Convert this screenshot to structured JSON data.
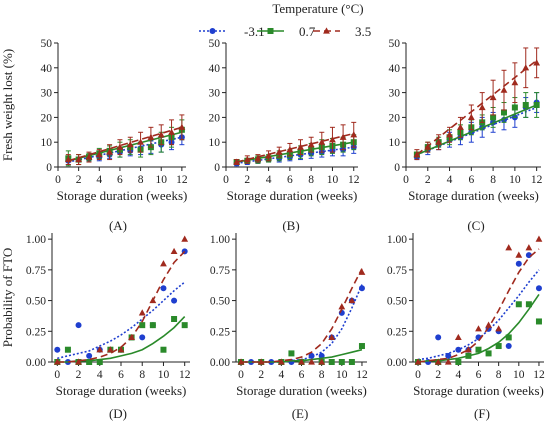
{
  "legend": {
    "title": "Temperature (°C)",
    "entries": [
      {
        "label": "-3.1",
        "color": "#1f3fcf",
        "marker": "circle",
        "line": "dotted"
      },
      {
        "label": "0.7",
        "color": "#2a8a2a",
        "marker": "square",
        "line": "solid"
      },
      {
        "label": "3.5",
        "color": "#a02a1e",
        "marker": "triangle",
        "line": "dashed"
      }
    ]
  },
  "chart_data": [
    {
      "id": "A",
      "type": "line",
      "panel_label": "(A)",
      "xlabel": "Storage duration (weeks)",
      "ylabel": "Fresh weight lost (%)",
      "xlim": [
        0,
        12.4
      ],
      "ylim": [
        0,
        50
      ],
      "xticks": [
        "0",
        "2",
        "4",
        "6",
        "8",
        "10",
        "12"
      ],
      "yticks": [
        "0",
        "10",
        "20",
        "30",
        "40",
        "50"
      ],
      "x": [
        1,
        2,
        3,
        4,
        5,
        6,
        7,
        8,
        9,
        10,
        11,
        12
      ],
      "series": [
        {
          "name": "-3.1",
          "values": [
            2.5,
            3,
            3.5,
            4,
            5,
            6,
            6.5,
            7.5,
            8,
            9,
            10,
            12
          ],
          "err": [
            1.5,
            1,
            1,
            1.5,
            1.5,
            2,
            2,
            2.5,
            2.5,
            3,
            3,
            3
          ],
          "fit": [
            [
              1,
              2
            ],
            [
              12,
              12
            ]
          ]
        },
        {
          "name": "0.7",
          "values": [
            3.5,
            3,
            4,
            5.5,
            6.5,
            7,
            8,
            7,
            8,
            10,
            12,
            15
          ],
          "err": [
            3,
            2,
            1.5,
            2,
            2,
            3,
            3,
            3,
            3,
            4,
            4,
            4
          ],
          "fit": [
            [
              1,
              2.5
            ],
            [
              12,
              14
            ]
          ]
        },
        {
          "name": "3.5",
          "values": [
            3,
            3,
            4,
            5,
            6,
            8,
            9,
            10,
            12,
            13,
            14,
            16
          ],
          "err": [
            2,
            2,
            2,
            2,
            3,
            3,
            3,
            4,
            4,
            4,
            5,
            5
          ],
          "fit": [
            [
              1,
              2.5
            ],
            [
              12,
              16
            ]
          ]
        }
      ]
    },
    {
      "id": "B",
      "type": "line",
      "panel_label": "(B)",
      "xlabel": "Storage duration (weeks)",
      "ylabel": "",
      "xlim": [
        0,
        12.4
      ],
      "ylim": [
        0,
        50
      ],
      "xticks": [
        "0",
        "2",
        "4",
        "6",
        "8",
        "10",
        "12"
      ],
      "yticks": [
        "0",
        "10",
        "20",
        "30",
        "40",
        "50"
      ],
      "x": [
        1,
        2,
        3,
        4,
        5,
        6,
        7,
        8,
        9,
        10,
        11,
        12
      ],
      "series": [
        {
          "name": "-3.1",
          "values": [
            1.5,
            2,
            2.5,
            3,
            3.5,
            4,
            5,
            5.5,
            6,
            6.5,
            7,
            8
          ],
          "err": [
            1,
            1,
            1,
            1,
            1.5,
            1.5,
            2,
            2,
            2,
            2,
            2.5,
            2.5
          ],
          "fit": [
            [
              1,
              1.5
            ],
            [
              12,
              8
            ]
          ]
        },
        {
          "name": "0.7",
          "values": [
            2,
            2.5,
            3,
            3.5,
            4.5,
            5,
            6,
            7,
            8,
            8.5,
            9,
            10
          ],
          "err": [
            1,
            1,
            1.5,
            1.5,
            2,
            2,
            2.5,
            2.5,
            3,
            3,
            3,
            3
          ],
          "fit": [
            [
              1,
              2
            ],
            [
              12,
              10
            ]
          ]
        },
        {
          "name": "3.5",
          "values": [
            2,
            3,
            3.5,
            4.5,
            6,
            7,
            8,
            9,
            10,
            11,
            12,
            13
          ],
          "err": [
            1,
            1.5,
            1.5,
            2,
            2,
            2.5,
            3,
            3,
            4,
            5,
            5,
            5
          ],
          "fit": [
            [
              1,
              2
            ],
            [
              12,
              13.5
            ]
          ]
        }
      ]
    },
    {
      "id": "C",
      "type": "line",
      "panel_label": "(C)",
      "xlabel": "Storage duration (weeks)",
      "ylabel": "",
      "xlim": [
        0,
        12.4
      ],
      "ylim": [
        0,
        50
      ],
      "xticks": [
        "0",
        "2",
        "4",
        "6",
        "8",
        "10",
        "12"
      ],
      "yticks": [
        "0",
        "10",
        "20",
        "30",
        "40",
        "50"
      ],
      "x": [
        1,
        2,
        3,
        4,
        5,
        6,
        7,
        8,
        9,
        10,
        11,
        12
      ],
      "series": [
        {
          "name": "-3.1",
          "values": [
            4,
            7,
            9,
            11,
            12,
            14,
            16,
            18,
            19,
            20,
            24,
            26
          ],
          "err": [
            1,
            2,
            2,
            3,
            3,
            4,
            4,
            4,
            4,
            4,
            4,
            4
          ],
          "fit": [
            [
              1,
              5
            ],
            [
              12,
              24
            ]
          ]
        },
        {
          "name": "0.7",
          "values": [
            5,
            8,
            10,
            12,
            14,
            16,
            18,
            20,
            22,
            24,
            25,
            25
          ],
          "err": [
            1,
            2,
            2,
            3,
            3,
            3,
            3,
            4,
            4,
            4,
            5,
            5
          ],
          "fit": [
            [
              1,
              5
            ],
            [
              12,
              25
            ]
          ]
        },
        {
          "name": "3.5",
          "values": [
            5,
            8,
            10,
            13,
            16,
            20,
            24,
            28,
            31,
            34,
            40,
            42
          ],
          "err": [
            2,
            2,
            3,
            3,
            4,
            5,
            6,
            7,
            8,
            8,
            8,
            6
          ],
          "fit": [
            [
              1,
              5
            ],
            [
              12,
              43
            ]
          ]
        }
      ]
    },
    {
      "id": "D",
      "type": "scatter",
      "panel_label": "(D)",
      "xlabel": "Storage duration (weeks)",
      "ylabel": "Probability of FTO",
      "xlim": [
        -0.5,
        12.5
      ],
      "ylim": [
        0,
        1.05
      ],
      "xticks": [
        "0",
        "2",
        "4",
        "6",
        "8",
        "10",
        "12"
      ],
      "yticks": [
        "0.00",
        "0.25",
        "0.50",
        "0.75",
        "1.00"
      ],
      "series": [
        {
          "name": "-3.1",
          "points": [
            [
              0,
              0.1
            ],
            [
              1,
              0.0
            ],
            [
              2,
              0.3
            ],
            [
              3,
              0.05
            ],
            [
              4,
              0.1
            ],
            [
              6,
              0.1
            ],
            [
              8,
              0.2
            ],
            [
              9,
              0.3
            ],
            [
              10,
              0.6
            ],
            [
              11,
              0.5
            ],
            [
              12,
              0.9
            ]
          ],
          "curve": [
            0.03,
            0.05,
            0.07,
            0.09,
            0.13,
            0.17,
            0.22,
            0.28,
            0.35,
            0.42,
            0.5,
            0.58,
            0.65
          ]
        },
        {
          "name": "0.7",
          "points": [
            [
              0,
              0.0
            ],
            [
              1,
              0.1
            ],
            [
              2,
              0.0
            ],
            [
              3,
              0.0
            ],
            [
              4,
              0.0
            ],
            [
              5,
              0.1
            ],
            [
              6,
              0.1
            ],
            [
              7,
              0.2
            ],
            [
              8,
              0.3
            ],
            [
              9,
              0.3
            ],
            [
              10,
              0.1
            ],
            [
              11,
              0.35
            ],
            [
              12,
              0.3
            ]
          ],
          "curve": [
            0.0,
            0.0,
            0.01,
            0.01,
            0.02,
            0.03,
            0.05,
            0.07,
            0.1,
            0.15,
            0.21,
            0.28,
            0.37
          ]
        },
        {
          "name": "3.5",
          "points": [
            [
              0,
              0.0
            ],
            [
              2,
              0.0
            ],
            [
              4,
              0.1
            ],
            [
              5,
              0.1
            ],
            [
              6,
              0.1
            ],
            [
              7,
              0.2
            ],
            [
              8,
              0.4
            ],
            [
              9,
              0.5
            ],
            [
              10,
              0.8
            ],
            [
              11,
              0.9
            ],
            [
              12,
              1.0
            ]
          ],
          "curve": [
            0.0,
            0.0,
            0.01,
            0.02,
            0.04,
            0.07,
            0.12,
            0.2,
            0.33,
            0.5,
            0.67,
            0.81,
            0.9
          ]
        }
      ]
    },
    {
      "id": "E",
      "type": "scatter",
      "panel_label": "(E)",
      "xlabel": "Storage duration (weeks)",
      "ylabel": "",
      "xlim": [
        -0.5,
        12.5
      ],
      "ylim": [
        0,
        1.05
      ],
      "xticks": [
        "0",
        "2",
        "4",
        "6",
        "8",
        "10",
        "12"
      ],
      "yticks": [
        "0.00",
        "0.25",
        "0.50",
        "0.75",
        "1.00"
      ],
      "series": [
        {
          "name": "-3.1",
          "points": [
            [
              0,
              0.0
            ],
            [
              1,
              0.0
            ],
            [
              2,
              0.0
            ],
            [
              3,
              0.0
            ],
            [
              4,
              0.0
            ],
            [
              5,
              0.0
            ],
            [
              6,
              0.0
            ],
            [
              7,
              0.05
            ],
            [
              8,
              0.05
            ],
            [
              9,
              0.2
            ],
            [
              10,
              0.4
            ],
            [
              11,
              0.5
            ],
            [
              12,
              0.6
            ]
          ],
          "curve": [
            0.0,
            0.0,
            0.0,
            0.0,
            0.0,
            0.01,
            0.02,
            0.04,
            0.08,
            0.15,
            0.27,
            0.44,
            0.63
          ]
        },
        {
          "name": "0.7",
          "points": [
            [
              0,
              0.0
            ],
            [
              2,
              0.0
            ],
            [
              4,
              0.0
            ],
            [
              5,
              0.07
            ],
            [
              6,
              0.0
            ],
            [
              8,
              0.0
            ],
            [
              9,
              0.0
            ],
            [
              10,
              0.0
            ],
            [
              11,
              0.0
            ],
            [
              12,
              0.13
            ]
          ],
          "curve": [
            0.0,
            0.0,
            0.0,
            0.0,
            0.0,
            0.01,
            0.01,
            0.02,
            0.03,
            0.04,
            0.06,
            0.08,
            0.1
          ]
        },
        {
          "name": "3.5",
          "points": [
            [
              0,
              0.0
            ],
            [
              2,
              0.0
            ],
            [
              4,
              0.0
            ],
            [
              6,
              0.0
            ],
            [
              7,
              0.0
            ],
            [
              8,
              0.0
            ],
            [
              9,
              0.2
            ],
            [
              10,
              0.45
            ],
            [
              11,
              0.5
            ],
            [
              12,
              0.73
            ]
          ],
          "curve": [
            0.0,
            0.0,
            0.0,
            0.0,
            0.01,
            0.02,
            0.04,
            0.08,
            0.15,
            0.27,
            0.43,
            0.6,
            0.76
          ]
        }
      ]
    },
    {
      "id": "F",
      "type": "scatter",
      "panel_label": "(F)",
      "xlabel": "Storage duration (weeks)",
      "ylabel": "",
      "xlim": [
        -0.5,
        12.5
      ],
      "ylim": [
        0,
        1.05
      ],
      "xticks": [
        "0",
        "2",
        "4",
        "6",
        "8",
        "10",
        "12"
      ],
      "yticks": [
        "0.00",
        "0.25",
        "0.50",
        "0.75",
        "1.00"
      ],
      "series": [
        {
          "name": "-3.1",
          "points": [
            [
              0,
              0.0
            ],
            [
              1,
              0.0
            ],
            [
              2,
              0.2
            ],
            [
              3,
              0.05
            ],
            [
              4,
              0.1
            ],
            [
              5,
              0.1
            ],
            [
              6,
              0.2
            ],
            [
              7,
              0.27
            ],
            [
              8,
              0.25
            ],
            [
              9,
              0.13
            ],
            [
              10,
              0.8
            ],
            [
              11,
              0.87
            ],
            [
              12,
              0.6
            ]
          ],
          "curve": [
            0.02,
            0.03,
            0.05,
            0.07,
            0.1,
            0.14,
            0.19,
            0.26,
            0.34,
            0.44,
            0.54,
            0.65,
            0.75
          ]
        },
        {
          "name": "0.7",
          "points": [
            [
              0,
              0.0
            ],
            [
              2,
              0.0
            ],
            [
              4,
              0.0
            ],
            [
              5,
              0.05
            ],
            [
              6,
              0.1
            ],
            [
              7,
              0.07
            ],
            [
              8,
              0.13
            ],
            [
              9,
              0.2
            ],
            [
              10,
              0.47
            ],
            [
              11,
              0.47
            ],
            [
              12,
              0.33
            ]
          ],
          "curve": [
            0.0,
            0.01,
            0.01,
            0.02,
            0.03,
            0.05,
            0.07,
            0.11,
            0.16,
            0.23,
            0.32,
            0.43,
            0.55
          ]
        },
        {
          "name": "3.5",
          "points": [
            [
              0,
              0.0
            ],
            [
              2,
              0.0
            ],
            [
              3,
              0.0
            ],
            [
              4,
              0.2
            ],
            [
              5,
              0.1
            ],
            [
              6,
              0.27
            ],
            [
              7,
              0.3
            ],
            [
              8,
              0.27
            ],
            [
              9,
              0.93
            ],
            [
              10,
              0.87
            ],
            [
              11,
              0.93
            ],
            [
              12,
              1.0
            ]
          ],
          "curve": [
            0.0,
            0.01,
            0.02,
            0.03,
            0.06,
            0.1,
            0.17,
            0.28,
            0.42,
            0.58,
            0.73,
            0.85,
            0.92
          ]
        }
      ]
    }
  ]
}
